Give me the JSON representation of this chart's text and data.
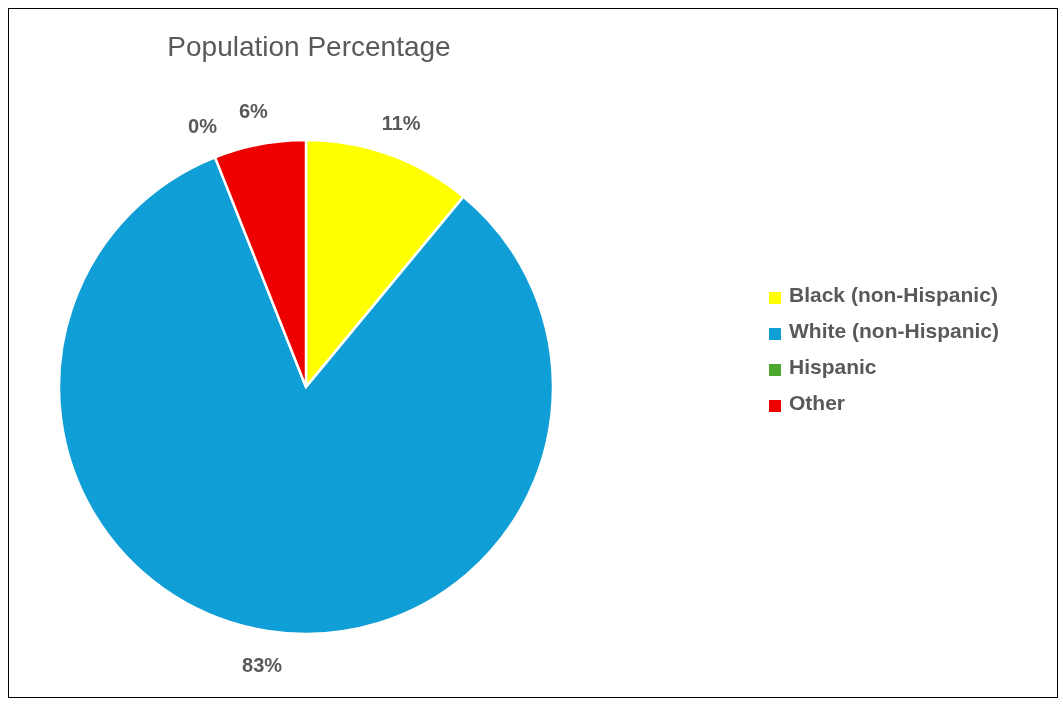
{
  "chart_data": {
    "type": "pie",
    "title": "Population Percentage",
    "categories": [
      "Black (non-Hispanic)",
      "White (non-Hispanic)",
      "Hispanic",
      "Other"
    ],
    "values": [
      11,
      83,
      0,
      6
    ],
    "colors": [
      "#ffff00",
      "#0f9ed5",
      "#4ea72e",
      "#ee0000"
    ],
    "value_labels": [
      "11%",
      "83%",
      "0%",
      "6%"
    ],
    "legend": "right"
  }
}
